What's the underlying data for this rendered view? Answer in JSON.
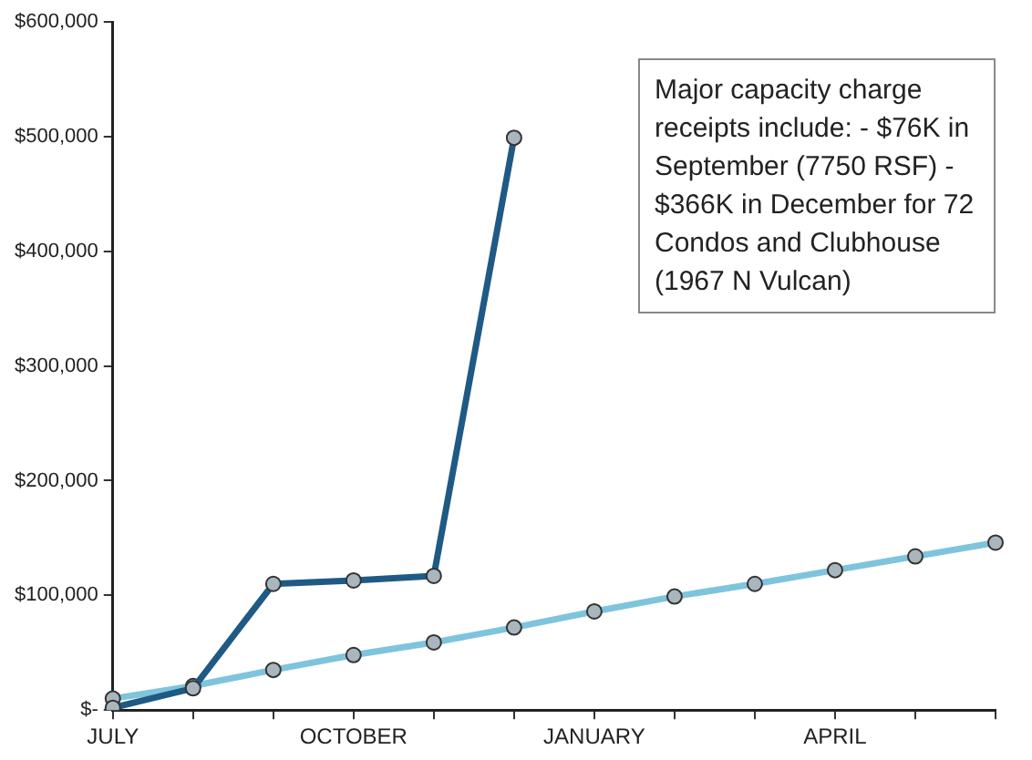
{
  "chart_data": {
    "type": "line",
    "categories": [
      "JULY",
      null,
      null,
      "OCTOBER",
      null,
      null,
      "JANUARY",
      null,
      null,
      "APRIL",
      null,
      null
    ],
    "series": [
      {
        "color": "#1f5a85",
        "values": [
          2000,
          19000,
          110000,
          113000,
          117000,
          499000,
          null,
          null,
          null,
          null,
          null,
          null
        ]
      },
      {
        "color": "#7ec4dc",
        "values": [
          10000,
          21000,
          35000,
          48000,
          59000,
          72000,
          86000,
          99000,
          110000,
          122000,
          134000,
          146000
        ]
      }
    ],
    "ylim": [
      0,
      600000
    ],
    "yticks": [
      {
        "value": 0,
        "label": "$-"
      },
      {
        "value": 100000,
        "label": "$100,000"
      },
      {
        "value": 200000,
        "label": "$200,000"
      },
      {
        "value": 300000,
        "label": "$300,000"
      },
      {
        "value": 400000,
        "label": "$400,000"
      },
      {
        "value": 500000,
        "label": "$500,000"
      },
      {
        "value": 600000,
        "label": "$600,000"
      }
    ],
    "grid": false,
    "legend": false,
    "marker": "circle",
    "line_style": "solid",
    "annotations": [
      "Major capacity charge receipts include: - $76K in September (7750 RSF) - $366K in December for 72 Condos and Clubhouse (1967 N Vulcan)"
    ]
  }
}
